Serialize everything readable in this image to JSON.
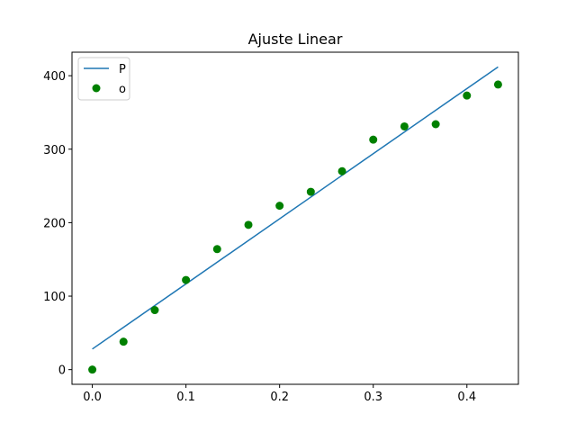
{
  "chart_data": {
    "type": "scatter",
    "title": "Ajuste Linear",
    "xlabel": "",
    "ylabel": "",
    "xlim": [
      -0.0217,
      0.455
    ],
    "ylim": [
      -20,
      432
    ],
    "xticks": [
      0.0,
      0.1,
      0.2,
      0.3,
      0.4
    ],
    "xtick_labels": [
      "0.0",
      "0.1",
      "0.2",
      "0.3",
      "0.4"
    ],
    "yticks": [
      0,
      100,
      200,
      300,
      400
    ],
    "ytick_labels": [
      "0",
      "100",
      "200",
      "300",
      "400"
    ],
    "grid": false,
    "legend_position": "top-left",
    "series": [
      {
        "name": "P",
        "kind": "line",
        "color": "#1f77b4",
        "x": [
          0.0,
          0.4333
        ],
        "y": [
          28,
          412
        ]
      },
      {
        "name": "o",
        "kind": "scatter",
        "color": "#008000",
        "x": [
          0.0,
          0.0333,
          0.0667,
          0.1,
          0.1333,
          0.1667,
          0.2,
          0.2333,
          0.2667,
          0.3,
          0.3333,
          0.3667,
          0.4,
          0.4333
        ],
        "y": [
          0,
          38,
          81,
          122,
          164,
          197,
          223,
          242,
          270,
          313,
          331,
          334,
          373,
          388
        ]
      }
    ]
  }
}
